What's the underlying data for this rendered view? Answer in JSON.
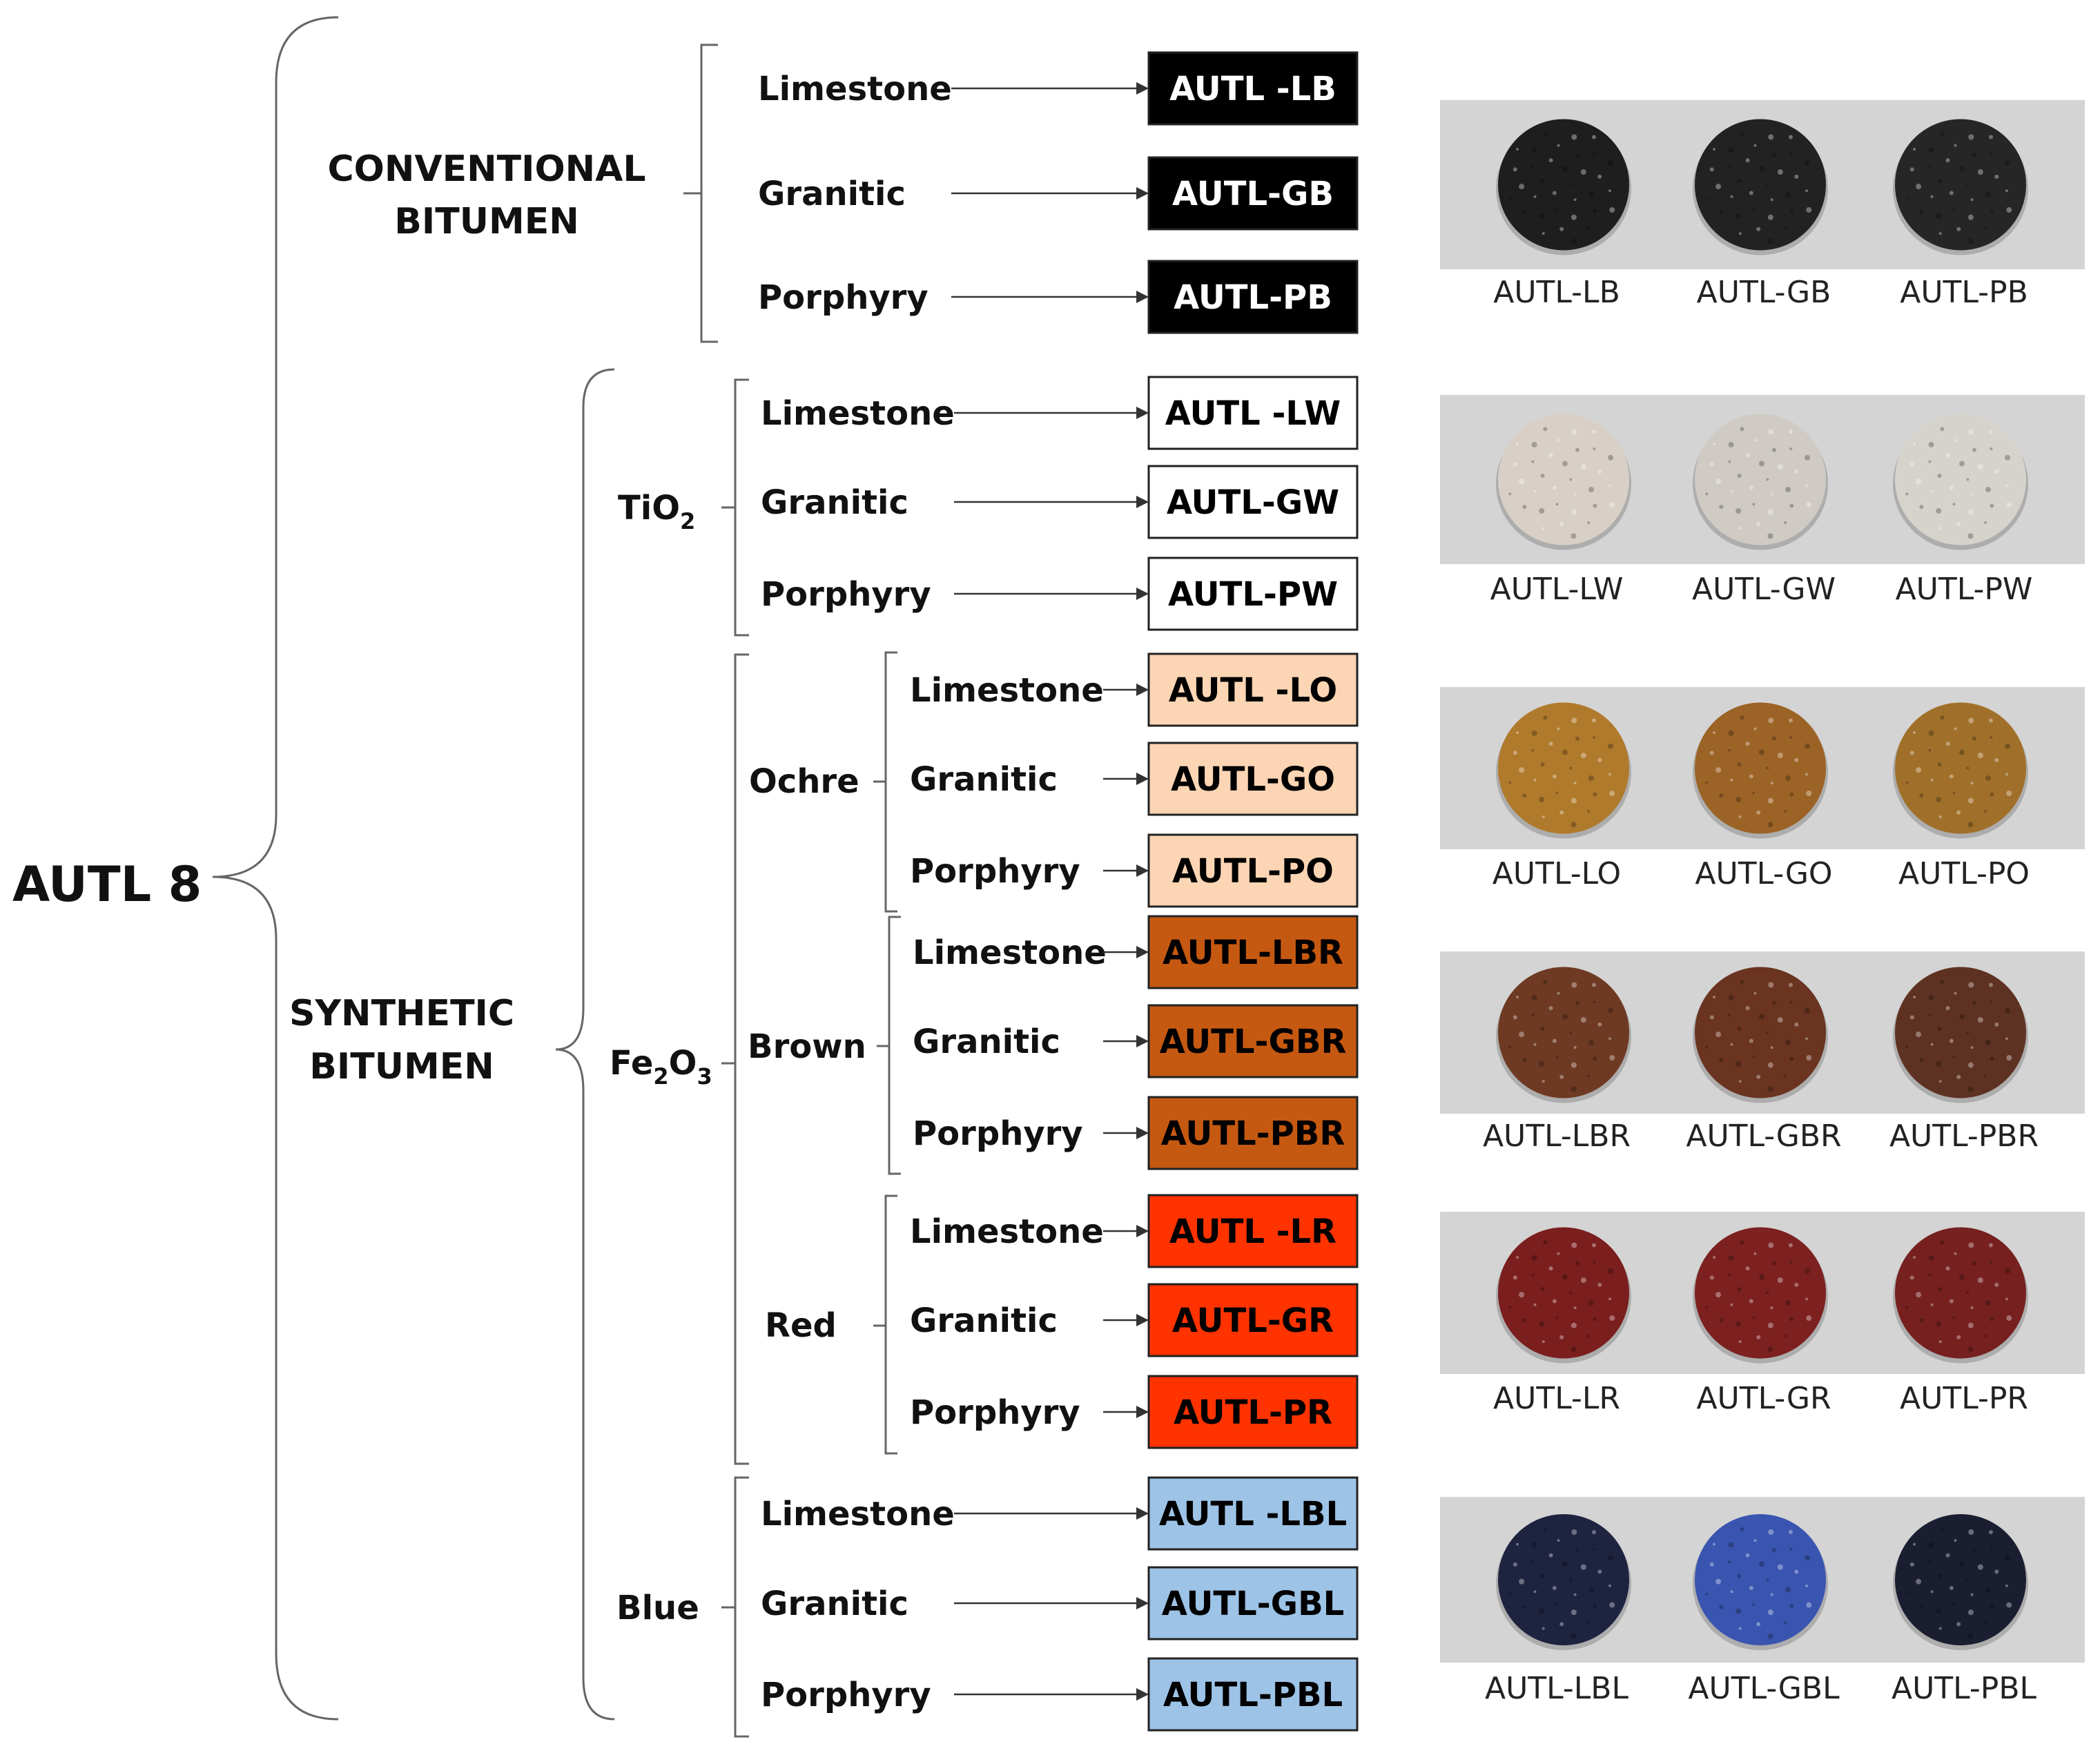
{
  "root": {
    "label": "AUTL 8"
  },
  "conventional": {
    "label_line1": "CONVENTIONAL",
    "label_line2": "BITUMEN",
    "rows": [
      {
        "aggregate": "Limestone",
        "code": "AUTL -LB"
      },
      {
        "aggregate": "Granitic",
        "code": "AUTL-GB"
      },
      {
        "aggregate": "Porphyry",
        "code": "AUTL-PB"
      }
    ],
    "box_fill": "#000000",
    "box_text": "#ffffff"
  },
  "synthetic": {
    "label_line1": "SYNTHETIC",
    "label_line2": "BITUMEN",
    "tio2": {
      "label": "TiO",
      "sub": "2",
      "box_fill": "#ffffff",
      "box_text": "#000000",
      "rows": [
        {
          "aggregate": "Limestone",
          "code": "AUTL -LW"
        },
        {
          "aggregate": "Granitic",
          "code": "AUTL-GW"
        },
        {
          "aggregate": "Porphyry",
          "code": "AUTL-PW"
        }
      ]
    },
    "fe2o3": {
      "label_a": "Fe",
      "sub_a": "2",
      "label_b": "O",
      "sub_b": "3",
      "ochre": {
        "label": "Ochre",
        "box_fill": "#fcd5b4",
        "box_text": "#000000",
        "rows": [
          {
            "aggregate": "Limestone",
            "code": "AUTL -LO"
          },
          {
            "aggregate": "Granitic",
            "code": "AUTL-GO"
          },
          {
            "aggregate": "Porphyry",
            "code": "AUTL-PO"
          }
        ]
      },
      "brown": {
        "label": "Brown",
        "box_fill": "#c65911",
        "box_text": "#000000",
        "rows": [
          {
            "aggregate": "Limestone",
            "code": "AUTL-LBR"
          },
          {
            "aggregate": "Granitic",
            "code": "AUTL-GBR"
          },
          {
            "aggregate": "Porphyry",
            "code": "AUTL-PBR"
          }
        ]
      },
      "red": {
        "label": "Red",
        "box_fill": "#ff3300",
        "box_text": "#000000",
        "rows": [
          {
            "aggregate": "Limestone",
            "code": "AUTL -LR"
          },
          {
            "aggregate": "Granitic",
            "code": "AUTL-GR"
          },
          {
            "aggregate": "Porphyry",
            "code": "AUTL-PR"
          }
        ]
      }
    },
    "blue": {
      "label": "Blue",
      "box_fill": "#9dc3e6",
      "box_text": "#000000",
      "rows": [
        {
          "aggregate": "Limestone",
          "code": "AUTL -LBL"
        },
        {
          "aggregate": "Granitic",
          "code": "AUTL-GBL"
        },
        {
          "aggregate": "Porphyry",
          "code": "AUTL-PBL"
        }
      ]
    }
  },
  "photos": [
    {
      "name": "black",
      "captions": [
        "AUTL-LB",
        "AUTL-GB",
        "AUTL-PB"
      ],
      "colors": [
        "#1e1e1e",
        "#222222",
        "#262626"
      ]
    },
    {
      "name": "white",
      "captions": [
        "AUTL-LW",
        "AUTL-GW",
        "AUTL-PW"
      ],
      "colors": [
        "#d8d0c6",
        "#cfcac4",
        "#d6d2cc"
      ]
    },
    {
      "name": "ochre",
      "captions": [
        "AUTL-LO",
        "AUTL-GO",
        "AUTL-PO"
      ],
      "colors": [
        "#b07a2c",
        "#9c6326",
        "#a0702a"
      ]
    },
    {
      "name": "brown",
      "captions": [
        "AUTL-LBR",
        "AUTL-GBR",
        "AUTL-PBR"
      ],
      "colors": [
        "#6e3a23",
        "#6a3420",
        "#5e3222"
      ]
    },
    {
      "name": "red",
      "captions": [
        "AUTL-LR",
        "AUTL-GR",
        "AUTL-PR"
      ],
      "colors": [
        "#7a1e1e",
        "#7c2020",
        "#762020"
      ]
    },
    {
      "name": "blue",
      "captions": [
        "AUTL-LBL",
        "AUTL-GBL",
        "AUTL-PBL"
      ],
      "colors": [
        "#1e2340",
        "#3a55b0",
        "#1a1e30"
      ]
    }
  ],
  "photo_background": "#d4d4d4"
}
